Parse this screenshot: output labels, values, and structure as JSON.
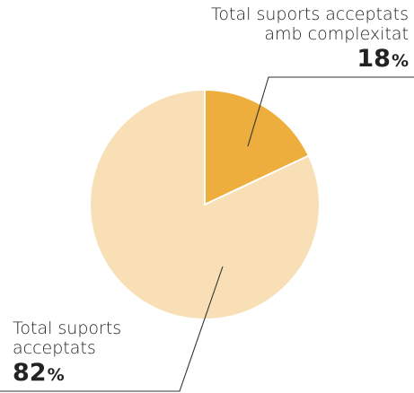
{
  "chart_data": {
    "type": "pie",
    "title": "",
    "slices": [
      {
        "label_lines": [
          "Total suports acceptats",
          "amb complexitat"
        ],
        "value": 18,
        "value_text": "18",
        "unit": "%",
        "color": "#EDAE3E"
      },
      {
        "label_lines": [
          "Total suports",
          "acceptats"
        ],
        "value": 82,
        "value_text": "82",
        "unit": "%",
        "color": "#F8DFB6"
      }
    ],
    "start_angle_deg": 0,
    "direction": "clockwise",
    "leader_line_color": "#333333"
  }
}
